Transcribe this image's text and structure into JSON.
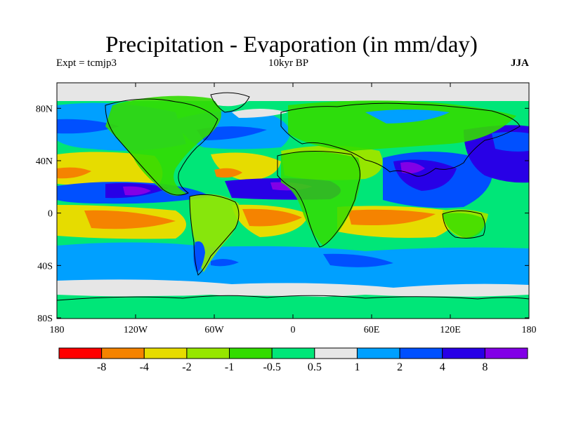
{
  "title": "Precipitation - Evaporation (in mm/day)",
  "experiment": "Expt = tcmjp3",
  "period": "10kyr BP",
  "season": "JJA",
  "map": {
    "y_ticks": [
      "80N",
      "40N",
      "0",
      "40S",
      "80S"
    ],
    "x_ticks": [
      "180",
      "120W",
      "60W",
      "0",
      "60E",
      "120E",
      "180"
    ]
  },
  "colorbar": {
    "colors": [
      "#ff0000",
      "#f58300",
      "#e6dc00",
      "#96e600",
      "#32dc00",
      "#00e678",
      "#e6e6e6",
      "#00a0ff",
      "#0050ff",
      "#2800e6",
      "#8200e6"
    ],
    "labels": [
      "-8",
      "-4",
      "-2",
      "-1",
      "-0.5",
      "0.5",
      "1",
      "2",
      "4",
      "8"
    ]
  },
  "colors": {
    "dry_strong": "#f58300",
    "dry": "#e6dc00",
    "dry_weak": "#96e600",
    "neutral": "#32dc00",
    "near_zero": "#00e678",
    "wet_weak": "#e6e6e6",
    "wet": "#00a0ff",
    "wet_strong": "#0050ff",
    "very_wet": "#2800e6",
    "extreme_wet": "#8200e6",
    "coast": "#000000"
  }
}
